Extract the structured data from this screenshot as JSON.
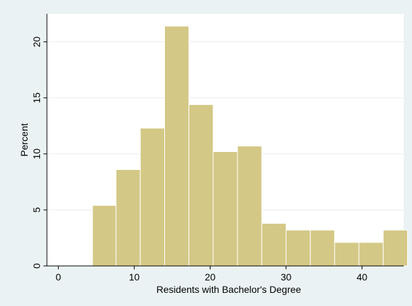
{
  "chart_data": {
    "type": "bar",
    "subtype": "histogram",
    "title": "",
    "xlabel": "Residents with Bachelor's Degree",
    "ylabel": "Percent",
    "xlim": [
      -1.5,
      45.5
    ],
    "ylim": [
      0,
      22.5
    ],
    "xticks": [
      0,
      10,
      20,
      30,
      40
    ],
    "yticks": [
      0,
      5,
      10,
      15,
      20
    ],
    "grid": true,
    "legend": "none",
    "bins": [
      {
        "x0": 4.5,
        "x1": 7.6,
        "value": 5.4
      },
      {
        "x0": 7.6,
        "x1": 10.8,
        "value": 8.6
      },
      {
        "x0": 10.8,
        "x1": 14.0,
        "value": 12.3
      },
      {
        "x0": 14.0,
        "x1": 17.2,
        "value": 21.4
      },
      {
        "x0": 17.2,
        "x1": 20.4,
        "value": 14.4
      },
      {
        "x0": 20.4,
        "x1": 23.6,
        "value": 10.2
      },
      {
        "x0": 23.6,
        "x1": 26.8,
        "value": 10.7
      },
      {
        "x0": 26.8,
        "x1": 30.0,
        "value": 3.8
      },
      {
        "x0": 30.0,
        "x1": 33.2,
        "value": 3.2
      },
      {
        "x0": 33.2,
        "x1": 36.4,
        "value": 3.2
      },
      {
        "x0": 36.4,
        "x1": 39.6,
        "value": 2.1
      },
      {
        "x0": 39.6,
        "x1": 42.8,
        "value": 2.1
      },
      {
        "x0": 42.8,
        "x1": 46.0,
        "value": 3.2
      }
    ]
  },
  "colors": {
    "outer_background": "#eaf2f3",
    "plot_background": "#ffffff",
    "bar_fill": "#d4c886",
    "bar_stroke": "#ffffff",
    "grid": "#e6eef0",
    "axis": "#000000"
  }
}
